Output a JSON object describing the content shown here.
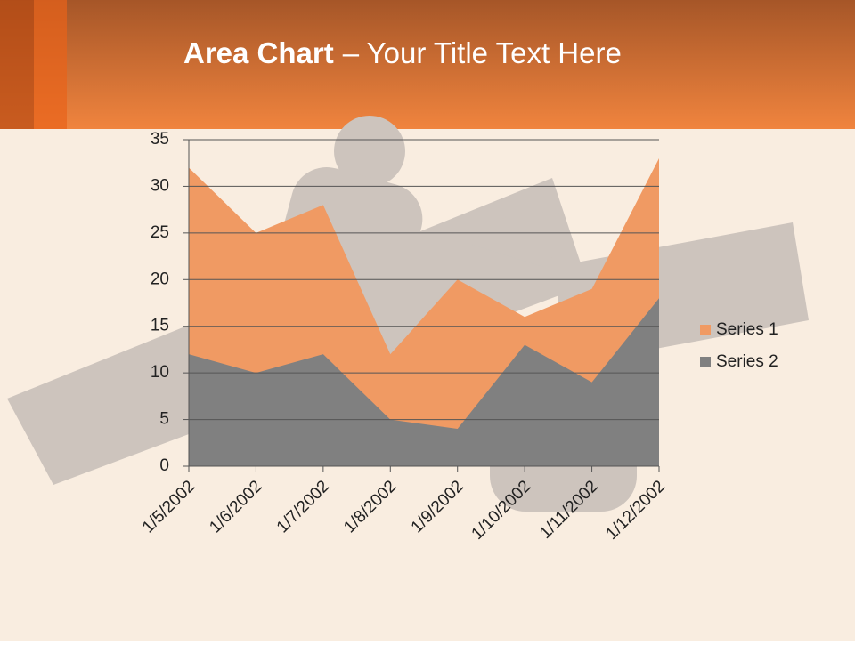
{
  "chart_data": {
    "type": "area",
    "title": "Area Chart",
    "title_rest": "– Your Title Text Here",
    "categories": [
      "1/5/2002",
      "1/6/2002",
      "1/7/2002",
      "1/8/2002",
      "1/9/2002",
      "1/10/2002",
      "1/11/2002",
      "1/12/2002"
    ],
    "series": [
      {
        "name": "Series 1",
        "color": "#f09a63",
        "values": [
          32,
          25,
          28,
          12,
          20,
          16,
          19,
          33
        ]
      },
      {
        "name": "Series 2",
        "color": "#808080",
        "values": [
          12,
          10,
          12,
          5,
          4,
          13,
          9,
          18
        ]
      }
    ],
    "ylim": [
      0,
      35
    ],
    "yticks": [
      0,
      5,
      10,
      15,
      20,
      25,
      30,
      35
    ],
    "grid": true,
    "legend": "right"
  }
}
